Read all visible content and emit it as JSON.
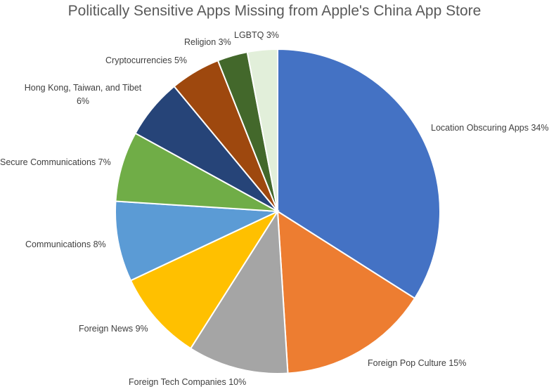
{
  "chart_data": {
    "type": "pie",
    "title": "Politically Sensitive Apps Missing from Apple's China App Store",
    "slices": [
      {
        "label": "Location Obscuring Apps 34%",
        "value": 34,
        "color": "#4472C4"
      },
      {
        "label": "Foreign Pop Culture 15%",
        "value": 15,
        "color": "#ED7D31"
      },
      {
        "label": "Foreign Tech Companies 10%",
        "value": 10,
        "color": "#A5A5A5"
      },
      {
        "label": "Foreign News 9%",
        "value": 9,
        "color": "#FFC000"
      },
      {
        "label": "Communications 8%",
        "value": 8,
        "color": "#5B9BD5"
      },
      {
        "label": "Secure Communications 7%",
        "value": 7,
        "color": "#70AD47"
      },
      {
        "label": [
          "Hong Kong, Taiwan, and Tibet",
          "6%"
        ],
        "value": 6,
        "color": "#264478"
      },
      {
        "label": "Cryptocurrencies 5%",
        "value": 5,
        "color": "#9E480E"
      },
      {
        "label": "Religion 3%",
        "value": 3,
        "color": "#43682B"
      },
      {
        "label": "LGBTQ 3%",
        "value": 3,
        "color": "#E2EFDA"
      }
    ],
    "legend": "none",
    "start_angle": "top, clockwise"
  }
}
